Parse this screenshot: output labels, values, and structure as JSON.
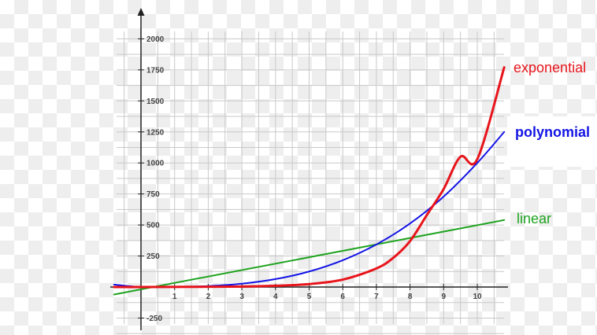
{
  "chart_data": {
    "type": "line",
    "title": "",
    "xlabel": "",
    "ylabel": "",
    "xlim": [
      -0.8,
      10.8
    ],
    "ylim": [
      -300,
      2100
    ],
    "grid": true,
    "x_ticks": [
      1,
      2,
      3,
      4,
      5,
      6,
      7,
      8,
      9,
      10
    ],
    "y_ticks": [
      -250,
      250,
      500,
      750,
      1000,
      1250,
      1500,
      1750,
      2000
    ],
    "series": [
      {
        "name": "exponential",
        "color": "#e8141b",
        "x": [
          -0.8,
          0,
          1,
          2,
          3,
          4,
          5,
          6,
          7,
          7.5,
          8,
          8.5,
          9,
          9.5,
          10,
          10.8
        ],
        "y": [
          0,
          0,
          1,
          2,
          4,
          10,
          24,
          60,
          150,
          235,
          370,
          580,
          790,
          1050,
          1030,
          1770
        ]
      },
      {
        "name": "polynomial",
        "color": "#1414e6",
        "x": [
          -0.8,
          0,
          1,
          2,
          3,
          4,
          5,
          6,
          7,
          8,
          9,
          10,
          10.8
        ],
        "y": [
          20,
          0,
          1,
          8,
          27,
          64,
          125,
          216,
          343,
          512,
          729,
          1000,
          1250
        ]
      },
      {
        "name": "linear",
        "color": "#1fa31f",
        "x": [
          -0.8,
          10.8
        ],
        "y": [
          -60,
          540
        ]
      }
    ]
  }
}
